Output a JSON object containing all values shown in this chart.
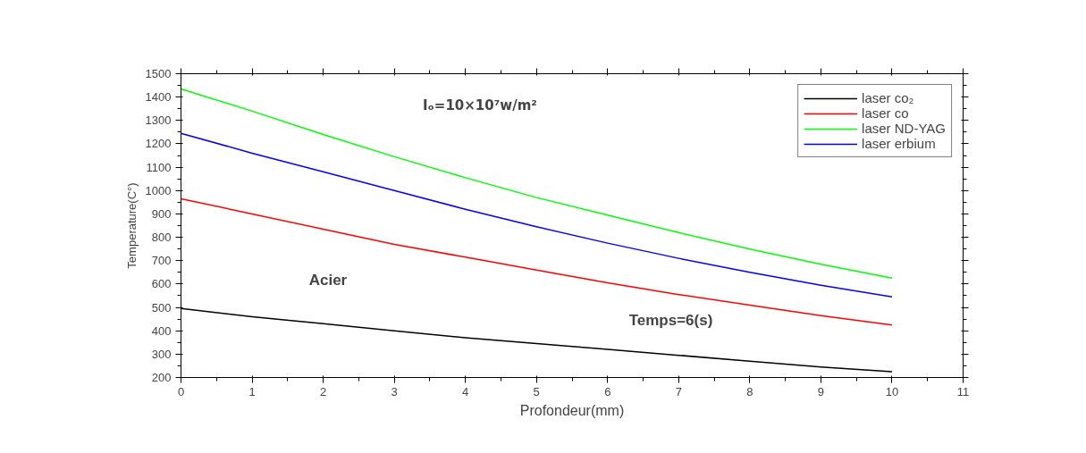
{
  "chart_data": {
    "type": "line",
    "xlabel": "Profondeur(mm)",
    "ylabel": "Temperature(C°)",
    "x": [
      0,
      1,
      2,
      3,
      4,
      5,
      6,
      7,
      8,
      9,
      10
    ],
    "xlim": [
      0,
      11
    ],
    "xticks": [
      0,
      1,
      2,
      3,
      4,
      5,
      6,
      7,
      8,
      9,
      10,
      11
    ],
    "ylim": [
      200,
      1500
    ],
    "yticks": [
      200,
      300,
      400,
      500,
      600,
      700,
      800,
      900,
      1000,
      1100,
      1200,
      1300,
      1400,
      1500
    ],
    "grid": false,
    "legend": "top right",
    "line_style": "solid",
    "marker": "none",
    "annotations": [
      "Iₒ=10×10⁷w/m²",
      "Acier",
      "Temps=6(s)"
    ],
    "series": [
      {
        "name": "laser co₂",
        "color": "#000000",
        "values": [
          495,
          460,
          430,
          400,
          370,
          345,
          320,
          295,
          270,
          245,
          225
        ]
      },
      {
        "name": "laser co",
        "color": "#ff0000",
        "values": [
          965,
          900,
          835,
          770,
          715,
          660,
          605,
          555,
          510,
          465,
          425
        ]
      },
      {
        "name": "laser ND-YAG",
        "color": "#00ff00",
        "values": [
          1435,
          1340,
          1240,
          1145,
          1055,
          970,
          895,
          820,
          750,
          685,
          625
        ]
      },
      {
        "name": "laser erbium",
        "color": "#0000ff",
        "values": [
          1245,
          1160,
          1080,
          1000,
          920,
          845,
          775,
          710,
          650,
          595,
          545
        ]
      }
    ]
  }
}
